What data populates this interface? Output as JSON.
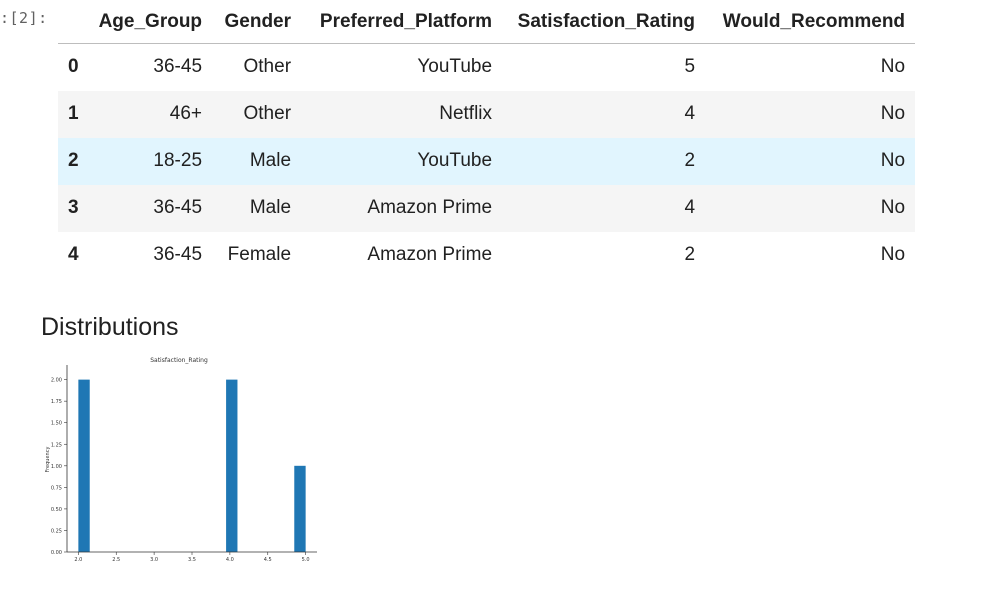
{
  "cell": {
    "prompt": ":[2]:"
  },
  "table": {
    "columns": [
      "Age_Group",
      "Gender",
      "Preferred_Platform",
      "Satisfaction_Rating",
      "Would_Recommend"
    ],
    "rows": [
      {
        "index": "0",
        "cells": [
          "36-45",
          "Other",
          "YouTube",
          "5",
          "No"
        ]
      },
      {
        "index": "1",
        "cells": [
          "46+",
          "Other",
          "Netflix",
          "4",
          "No"
        ]
      },
      {
        "index": "2",
        "cells": [
          "18-25",
          "Male",
          "YouTube",
          "2",
          "No"
        ]
      },
      {
        "index": "3",
        "cells": [
          "36-45",
          "Male",
          "Amazon Prime",
          "4",
          "No"
        ]
      },
      {
        "index": "4",
        "cells": [
          "36-45",
          "Female",
          "Amazon Prime",
          "2",
          "No"
        ]
      }
    ]
  },
  "section_title": "Distributions",
  "chart_data": {
    "type": "bar",
    "title": "Satisfaction_Rating",
    "xlabel": "",
    "ylabel": "Frequency",
    "xlim": [
      1.85,
      5.15
    ],
    "ylim": [
      0,
      2.1
    ],
    "xticks": [
      {
        "value": 2.0,
        "label": "2.0"
      },
      {
        "value": 2.5,
        "label": "2.5"
      },
      {
        "value": 3.0,
        "label": "3.0"
      },
      {
        "value": 3.5,
        "label": "3.5"
      },
      {
        "value": 4.0,
        "label": "4.0"
      },
      {
        "value": 4.5,
        "label": "4.5"
      },
      {
        "value": 5.0,
        "label": "5.0"
      }
    ],
    "yticks": [
      {
        "value": 0.0,
        "label": "0.00"
      },
      {
        "value": 0.25,
        "label": "0.25"
      },
      {
        "value": 0.5,
        "label": "0.50"
      },
      {
        "value": 0.75,
        "label": "0.75"
      },
      {
        "value": 1.0,
        "label": "1.00"
      },
      {
        "value": 1.25,
        "label": "1.25"
      },
      {
        "value": 1.5,
        "label": "1.50"
      },
      {
        "value": 1.75,
        "label": "1.75"
      },
      {
        "value": 2.0,
        "label": "2.00"
      }
    ],
    "bins": [
      {
        "x0": 2.0,
        "x1": 2.15,
        "value": 2
      },
      {
        "x0": 3.95,
        "x1": 4.1,
        "value": 2
      },
      {
        "x0": 4.85,
        "x1": 5.0,
        "value": 1
      }
    ],
    "grid": false,
    "color": "#1f77b4"
  }
}
